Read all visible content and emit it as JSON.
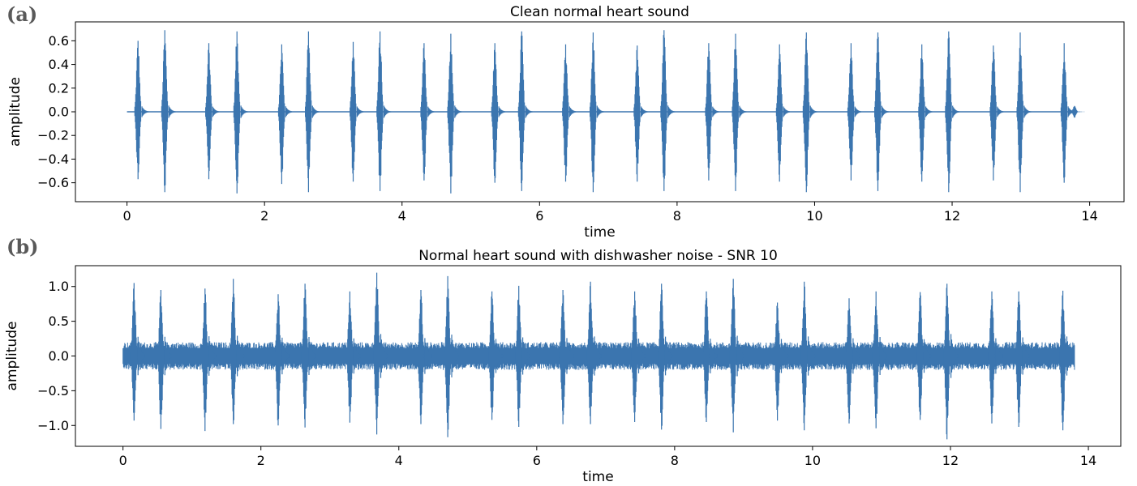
{
  "figure": {
    "panel_a_label": "(a)",
    "panel_b_label": "(b)"
  },
  "chart_data": [
    {
      "type": "line",
      "panel": "(a)",
      "title": "Clean normal heart sound",
      "xlabel": "time",
      "ylabel": "amplitude",
      "xlim": [
        -0.75,
        14.5
      ],
      "ylim": [
        -0.76,
        0.76
      ],
      "xticks": [
        0,
        2,
        4,
        6,
        8,
        10,
        12,
        14
      ],
      "xtick_labels": [
        "0",
        "2",
        "4",
        "6",
        "8",
        "10",
        "12",
        "14"
      ],
      "yticks": [
        0.6,
        0.4,
        0.2,
        0.0,
        -0.2,
        -0.4,
        -0.6
      ],
      "ytick_labels": [
        "0.6",
        "0.4",
        "0.2",
        "0.0",
        "−0.2",
        "−0.4",
        "−0.6"
      ],
      "signal_span": [
        0,
        13.8
      ],
      "baseline_noise": 0.005,
      "line_color": "#3b75af",
      "bursts": [
        {
          "t": 0.16,
          "max": 0.6,
          "min": -0.57
        },
        {
          "t": 0.55,
          "max": 0.69,
          "min": -0.68
        },
        {
          "t": 1.19,
          "max": 0.58,
          "min": -0.57
        },
        {
          "t": 1.6,
          "max": 0.68,
          "min": -0.69
        },
        {
          "t": 2.25,
          "max": 0.57,
          "min": -0.61
        },
        {
          "t": 2.64,
          "max": 0.68,
          "min": -0.68
        },
        {
          "t": 3.29,
          "max": 0.59,
          "min": -0.59
        },
        {
          "t": 3.68,
          "max": 0.68,
          "min": -0.67
        },
        {
          "t": 4.32,
          "max": 0.58,
          "min": -0.58
        },
        {
          "t": 4.71,
          "max": 0.66,
          "min": -0.69
        },
        {
          "t": 5.35,
          "max": 0.58,
          "min": -0.6
        },
        {
          "t": 5.74,
          "max": 0.68,
          "min": -0.67
        },
        {
          "t": 6.38,
          "max": 0.57,
          "min": -0.59
        },
        {
          "t": 6.78,
          "max": 0.67,
          "min": -0.68
        },
        {
          "t": 7.42,
          "max": 0.56,
          "min": -0.59
        },
        {
          "t": 7.81,
          "max": 0.69,
          "min": -0.67
        },
        {
          "t": 8.46,
          "max": 0.58,
          "min": -0.58
        },
        {
          "t": 8.85,
          "max": 0.66,
          "min": -0.67
        },
        {
          "t": 9.49,
          "max": 0.57,
          "min": -0.59
        },
        {
          "t": 9.88,
          "max": 0.67,
          "min": -0.68
        },
        {
          "t": 10.53,
          "max": 0.58,
          "min": -0.58
        },
        {
          "t": 10.92,
          "max": 0.67,
          "min": -0.67
        },
        {
          "t": 11.56,
          "max": 0.57,
          "min": -0.59
        },
        {
          "t": 11.95,
          "max": 0.68,
          "min": -0.68
        },
        {
          "t": 12.6,
          "max": 0.56,
          "min": -0.58
        },
        {
          "t": 12.99,
          "max": 0.67,
          "min": -0.68
        },
        {
          "t": 13.63,
          "max": 0.58,
          "min": -0.6
        },
        {
          "t": 13.78,
          "max": 0.05,
          "min": -0.05
        }
      ]
    },
    {
      "type": "line",
      "panel": "(b)",
      "title": "Normal heart sound with dishwasher noise - SNR 10",
      "xlabel": "time",
      "ylabel": "amplitude",
      "xlim": [
        -0.69,
        14.47
      ],
      "ylim": [
        -1.3,
        1.3
      ],
      "xticks": [
        0,
        2,
        4,
        6,
        8,
        10,
        12,
        14
      ],
      "xtick_labels": [
        "0",
        "2",
        "4",
        "6",
        "8",
        "10",
        "12",
        "14"
      ],
      "yticks": [
        1.0,
        0.5,
        0.0,
        -0.5,
        -1.0
      ],
      "ytick_labels": [
        "1.0",
        "0.5",
        "0.0",
        "−0.5",
        "−1.0"
      ],
      "signal_span": [
        0,
        13.8
      ],
      "noise_band": [
        -0.2,
        0.2
      ],
      "line_color": "#3b75af",
      "bursts": [
        {
          "t": 0.16,
          "max": 1.05,
          "min": -0.93
        },
        {
          "t": 0.55,
          "max": 0.95,
          "min": -1.05
        },
        {
          "t": 1.19,
          "max": 0.97,
          "min": -1.08
        },
        {
          "t": 1.6,
          "max": 1.11,
          "min": -0.98
        },
        {
          "t": 2.25,
          "max": 0.89,
          "min": -1.0
        },
        {
          "t": 2.64,
          "max": 1.04,
          "min": -1.03
        },
        {
          "t": 3.29,
          "max": 0.93,
          "min": -0.96
        },
        {
          "t": 3.68,
          "max": 1.2,
          "min": -1.13
        },
        {
          "t": 4.32,
          "max": 0.95,
          "min": -0.98
        },
        {
          "t": 4.71,
          "max": 1.15,
          "min": -1.17
        },
        {
          "t": 5.35,
          "max": 0.93,
          "min": -0.92
        },
        {
          "t": 5.74,
          "max": 1.01,
          "min": -1.02
        },
        {
          "t": 6.38,
          "max": 0.95,
          "min": -0.98
        },
        {
          "t": 6.78,
          "max": 1.07,
          "min": -0.98
        },
        {
          "t": 7.42,
          "max": 0.93,
          "min": -0.95
        },
        {
          "t": 7.81,
          "max": 1.04,
          "min": -1.06
        },
        {
          "t": 8.46,
          "max": 0.93,
          "min": -0.95
        },
        {
          "t": 8.85,
          "max": 1.11,
          "min": -1.1
        },
        {
          "t": 9.49,
          "max": 0.77,
          "min": -0.93
        },
        {
          "t": 9.88,
          "max": 1.07,
          "min": -1.07
        },
        {
          "t": 10.53,
          "max": 0.83,
          "min": -0.97
        },
        {
          "t": 10.92,
          "max": 0.93,
          "min": -1.04
        },
        {
          "t": 11.56,
          "max": 0.92,
          "min": -0.92
        },
        {
          "t": 11.95,
          "max": 1.04,
          "min": -1.2
        },
        {
          "t": 12.6,
          "max": 0.93,
          "min": -0.97
        },
        {
          "t": 12.99,
          "max": 0.93,
          "min": -1.02
        },
        {
          "t": 13.63,
          "max": 0.94,
          "min": -1.07
        }
      ]
    }
  ]
}
